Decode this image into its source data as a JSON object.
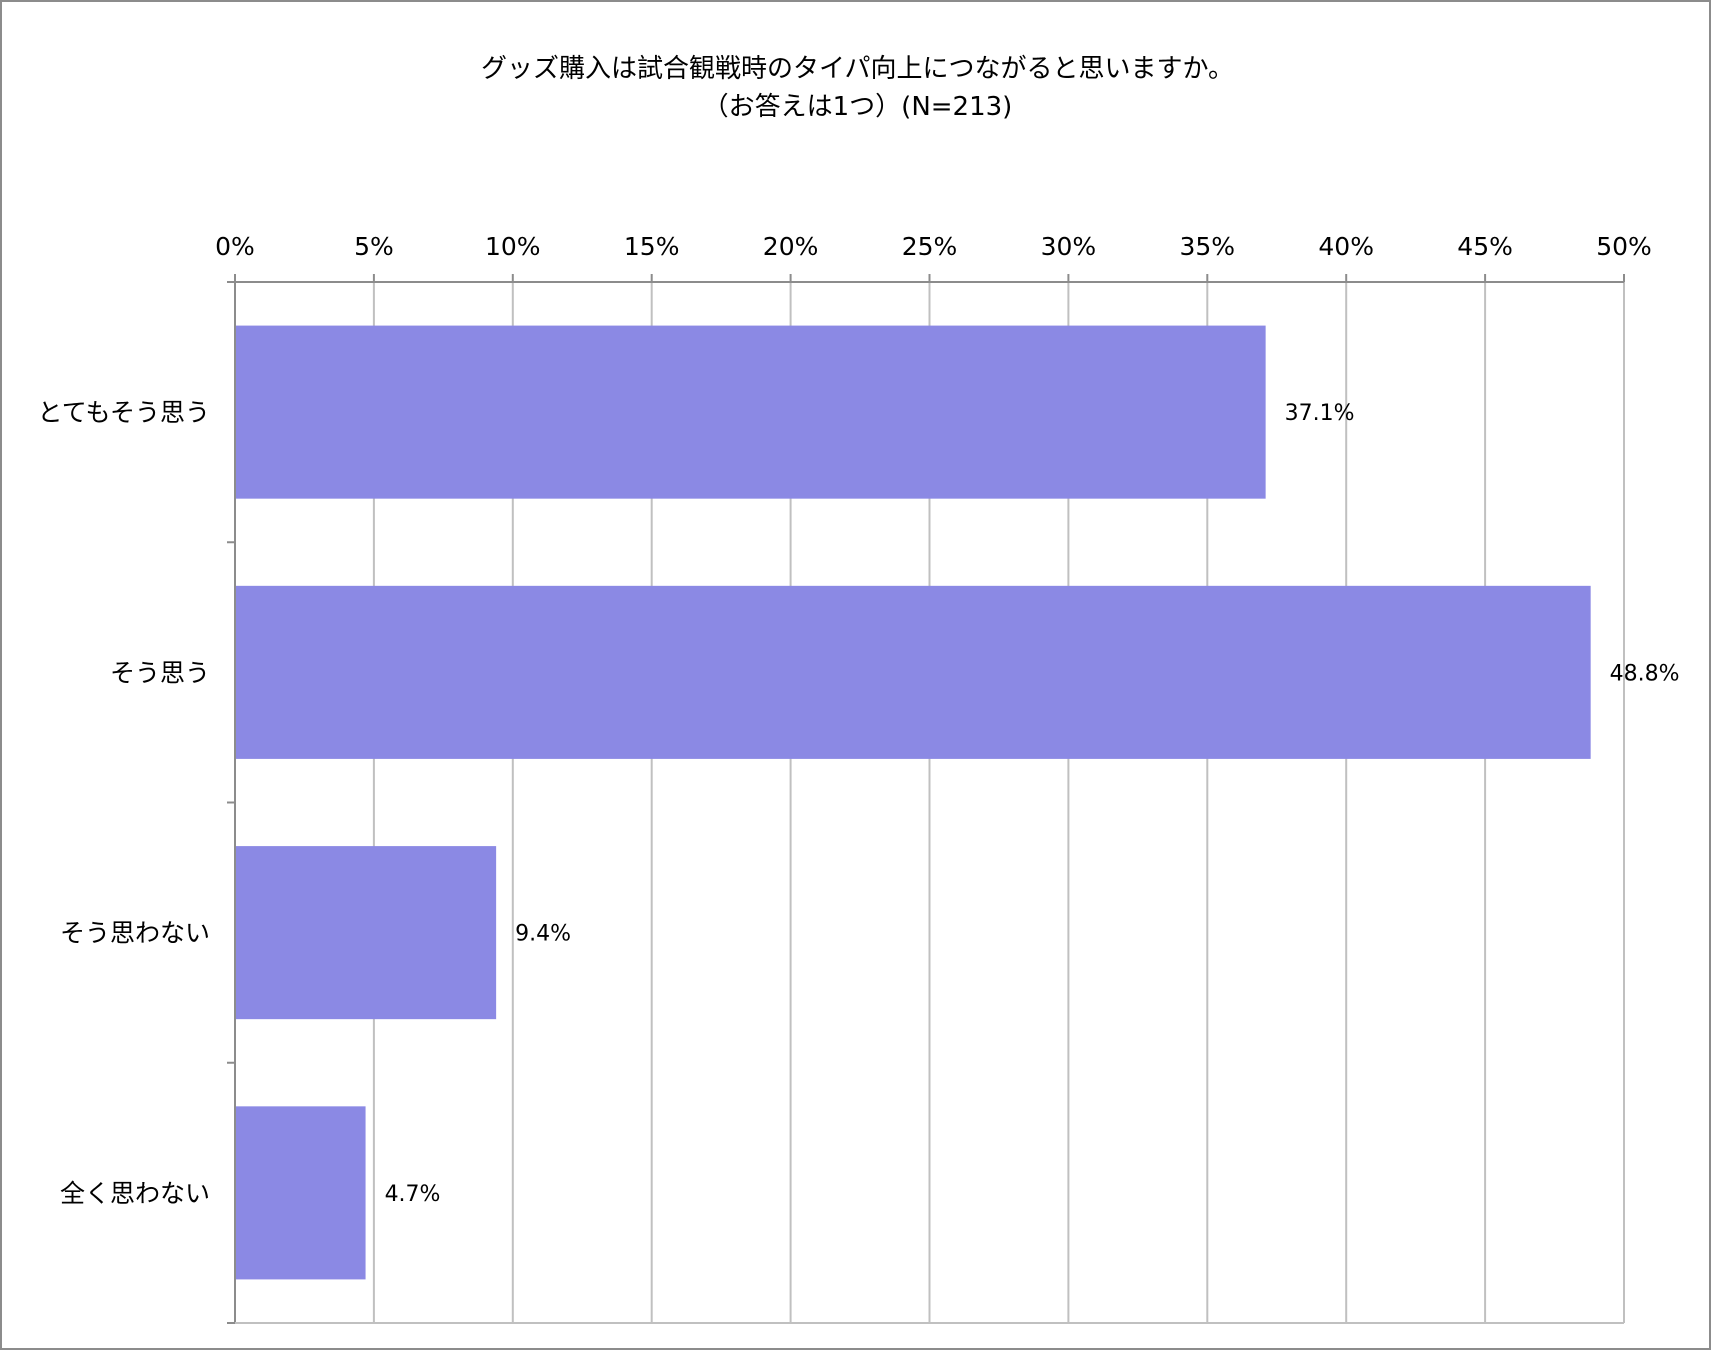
{
  "chart_data": {
    "type": "bar",
    "orientation": "horizontal",
    "title": "グッズ購入は試合観戦時のタイパ向上につながると思いますか。",
    "subtitle": "（お答えは1つ）(N=213)",
    "categories": [
      "とてもそう思う",
      "そう思う",
      "そう思わない",
      "全く思わない"
    ],
    "values": [
      37.1,
      48.8,
      9.4,
      4.7
    ],
    "data_labels": [
      "37.1%",
      "48.8%",
      "9.4%",
      "4.7%"
    ],
    "x_ticks": [
      "0%",
      "5%",
      "10%",
      "15%",
      "20%",
      "25%",
      "30%",
      "35%",
      "40%",
      "45%",
      "50%"
    ],
    "xlim": [
      0,
      50
    ],
    "x_axis_position": "top",
    "grid": true,
    "legend": "none",
    "bar_color": "#8b89e4",
    "grid_color": "#c0c0c0"
  }
}
